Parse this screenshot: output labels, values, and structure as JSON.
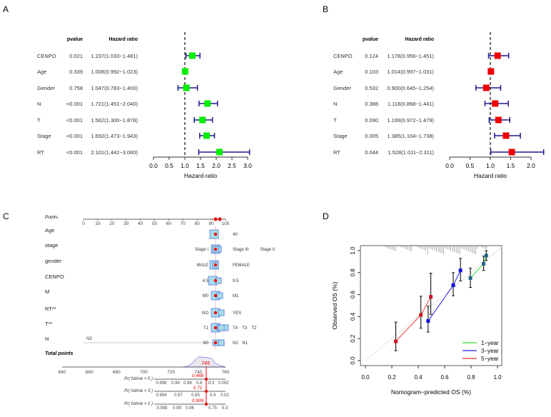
{
  "panels": {
    "a": "A",
    "b": "B",
    "c": "C",
    "d": "D"
  },
  "chart_data": [
    {
      "panel": "A",
      "type": "forest",
      "headers": {
        "pvalue": "pvalue",
        "hr": "Hazard ratio"
      },
      "xlabel": "Hazard ratio",
      "xlim": [
        0,
        3
      ],
      "ticks": [
        "0.0",
        "0.5",
        "1.0",
        "1.5",
        "2.0",
        "2.5",
        "3.0"
      ],
      "reference": 1,
      "marker_color": "#00ee00",
      "ci_color": "#1a1a8c",
      "rows": [
        {
          "name": "CENPO",
          "pvalue": "0.021",
          "hr_text": "1.237(1.033−1.481)",
          "hr": 1.237,
          "lo": 1.033,
          "hi": 1.481
        },
        {
          "name": "Age",
          "pvalue": "0.339",
          "hr_text": "1.008(0.992−1.023)",
          "hr": 1.008,
          "lo": 0.992,
          "hi": 1.023
        },
        {
          "name": "Gender",
          "pvalue": "0.758",
          "hr_text": "1.047(0.783−1.400)",
          "hr": 1.047,
          "lo": 0.783,
          "hi": 1.4
        },
        {
          "name": "N",
          "pvalue": "<0.001",
          "hr_text": "1.721(1.451−2.040)",
          "hr": 1.721,
          "lo": 1.451,
          "hi": 2.04
        },
        {
          "name": "T",
          "pvalue": "<0.001",
          "hr_text": "1.562(1.300−1.878)",
          "hr": 1.562,
          "lo": 1.3,
          "hi": 1.878
        },
        {
          "name": "Stage",
          "pvalue": "<0.001",
          "hr_text": "1.692(1.473−1.943)",
          "hr": 1.692,
          "lo": 1.473,
          "hi": 1.943
        },
        {
          "name": "RT",
          "pvalue": "<0.001",
          "hr_text": "2.101(1.442−3.060)",
          "hr": 2.101,
          "lo": 1.442,
          "hi": 3.06
        }
      ]
    },
    {
      "panel": "B",
      "type": "forest",
      "headers": {
        "pvalue": "pvalue",
        "hr": "Hazard ratio"
      },
      "xlabel": "Hazard ratio",
      "xlim": [
        0,
        2
      ],
      "ticks": [
        "0.0",
        "0.5",
        "1.0",
        "1.5",
        "2.0"
      ],
      "reference": 1,
      "marker_color": "#ee0000",
      "ci_color": "#1a1a8c",
      "rows": [
        {
          "name": "CENPO",
          "pvalue": "0.124",
          "hr_text": "1.178(0.956−1.451)",
          "hr": 1.178,
          "lo": 0.956,
          "hi": 1.451
        },
        {
          "name": "Age",
          "pvalue": "0.103",
          "hr_text": "1.014(0.997−1.031)",
          "hr": 1.014,
          "lo": 0.997,
          "hi": 1.031
        },
        {
          "name": "Gender",
          "pvalue": "0.532",
          "hr_text": "0.900(0.645−1.254)",
          "hr": 0.9,
          "lo": 0.645,
          "hi": 1.254
        },
        {
          "name": "N",
          "pvalue": "0.388",
          "hr_text": "1.118(0.868−1.441)",
          "hr": 1.118,
          "lo": 0.868,
          "hi": 1.441
        },
        {
          "name": "T",
          "pvalue": "0.090",
          "hr_text": "1.199(0.972−1.479)",
          "hr": 1.199,
          "lo": 0.972,
          "hi": 1.479
        },
        {
          "name": "Stage",
          "pvalue": "0.005",
          "hr_text": "1.385(1.104−1.738)",
          "hr": 1.385,
          "lo": 1.104,
          "hi": 1.738
        },
        {
          "name": "RT",
          "pvalue": "0.044",
          "hr_text": "1.528(1.011−2.311)",
          "hr": 1.528,
          "lo": 1.011,
          "hi": 2.311
        }
      ]
    },
    {
      "panel": "C",
      "type": "nomogram",
      "points_label": "Points",
      "points_ticks": [
        "0",
        "10",
        "20",
        "30",
        "40",
        "50",
        "60",
        "70",
        "80",
        "90",
        "100"
      ],
      "variables": [
        {
          "name": "Age",
          "levels": [
            {
              "label": "40",
              "points": 92
            }
          ]
        },
        {
          "name": "stage",
          "levels": [
            {
              "label": "Stage I",
              "points": 93
            },
            {
              "label": "Stage III",
              "points": 95
            },
            {
              "label": "Stage II",
              "points": 93
            }
          ]
        },
        {
          "name": "gender",
          "levels": [
            {
              "label": "MALE",
              "points": 92
            },
            {
              "label": "FEMALE",
              "points": 93
            }
          ]
        },
        {
          "name": "CENPO",
          "levels": [
            {
              "label": "4.5",
              "points": 91
            },
            {
              "label": "9.5",
              "points": 95
            }
          ]
        },
        {
          "name": "M",
          "levels": [
            {
              "label": "M0",
              "points": 93
            },
            {
              "label": "M1",
              "points": 96
            }
          ]
        },
        {
          "name": "RT**",
          "levels": [
            {
              "label": "NO",
              "points": 93
            },
            {
              "label": "YES",
              "points": 97
            }
          ]
        },
        {
          "name": "T**",
          "levels": [
            {
              "label": "T1",
              "points": 93
            },
            {
              "label": "T4",
              "points": 96
            },
            {
              "label": "T3",
              "points": 100
            },
            {
              "label": "T2",
              "points": 97
            }
          ]
        },
        {
          "name": "N",
          "levels": [
            {
              "label": "N3",
              "points": 0
            },
            {
              "label": "N0",
              "points": 93
            },
            {
              "label": "N2",
              "points": 97
            },
            {
              "label": "N1",
              "points": 97
            }
          ]
        }
      ],
      "total_label": "Total points",
      "total_ticks": [
        "640",
        "660",
        "680",
        "700",
        "720",
        "740",
        "760"
      ],
      "total_value": "745",
      "probabilities": [
        {
          "label": "Pr( futime > 5 )",
          "ticks": [
            "0.998",
            "0.99",
            "0.96",
            "0.8",
            "0.3",
            "0.002"
          ],
          "value": "0.468"
        },
        {
          "label": "Pr( futime > 3 )",
          "ticks": [
            "0.994",
            "0.97",
            "0.85",
            "0.4",
            "0.02"
          ],
          "value": "0.71"
        },
        {
          "label": "Pr( futime > 1 )",
          "ticks": [
            "0.998",
            "0.99",
            "0.96",
            "0.75",
            "0.3"
          ],
          "value": "0.908"
        }
      ],
      "highlight_color": "#ee0000",
      "box_color": "#a8dce8"
    },
    {
      "panel": "D",
      "type": "line",
      "xlabel": "Nomogram−predicted OS (%)",
      "ylabel": "Observed OS (%)",
      "xlim": [
        0,
        1
      ],
      "ylim": [
        0,
        1
      ],
      "xticks": [
        "0.0",
        "0.2",
        "0.4",
        "0.6",
        "0.8",
        "1.0"
      ],
      "yticks": [
        "0.0",
        "0.2",
        "0.4",
        "0.6",
        "0.8",
        "1.0"
      ],
      "legend_position": "bottom-right",
      "series": [
        {
          "name": "1−year",
          "color": "#33dd33",
          "points": [
            [
              0.795,
              0.75,
              0.665,
              0.84
            ],
            [
              0.895,
              0.88,
              0.82,
              0.95
            ],
            [
              0.915,
              0.955,
              0.91,
              1.0
            ]
          ]
        },
        {
          "name": "3−year",
          "color": "#2222ee",
          "points": [
            [
              0.475,
              0.36,
              0.26,
              0.495
            ],
            [
              0.665,
              0.685,
              0.59,
              0.8
            ],
            [
              0.72,
              0.82,
              0.725,
              0.93
            ]
          ]
        },
        {
          "name": "5−year",
          "color": "#ee3333",
          "points": [
            [
              0.23,
              0.175,
              0.09,
              0.35
            ],
            [
              0.42,
              0.415,
              0.295,
              0.585
            ],
            [
              0.495,
              0.58,
              0.42,
              0.795
            ]
          ]
        }
      ]
    }
  ]
}
